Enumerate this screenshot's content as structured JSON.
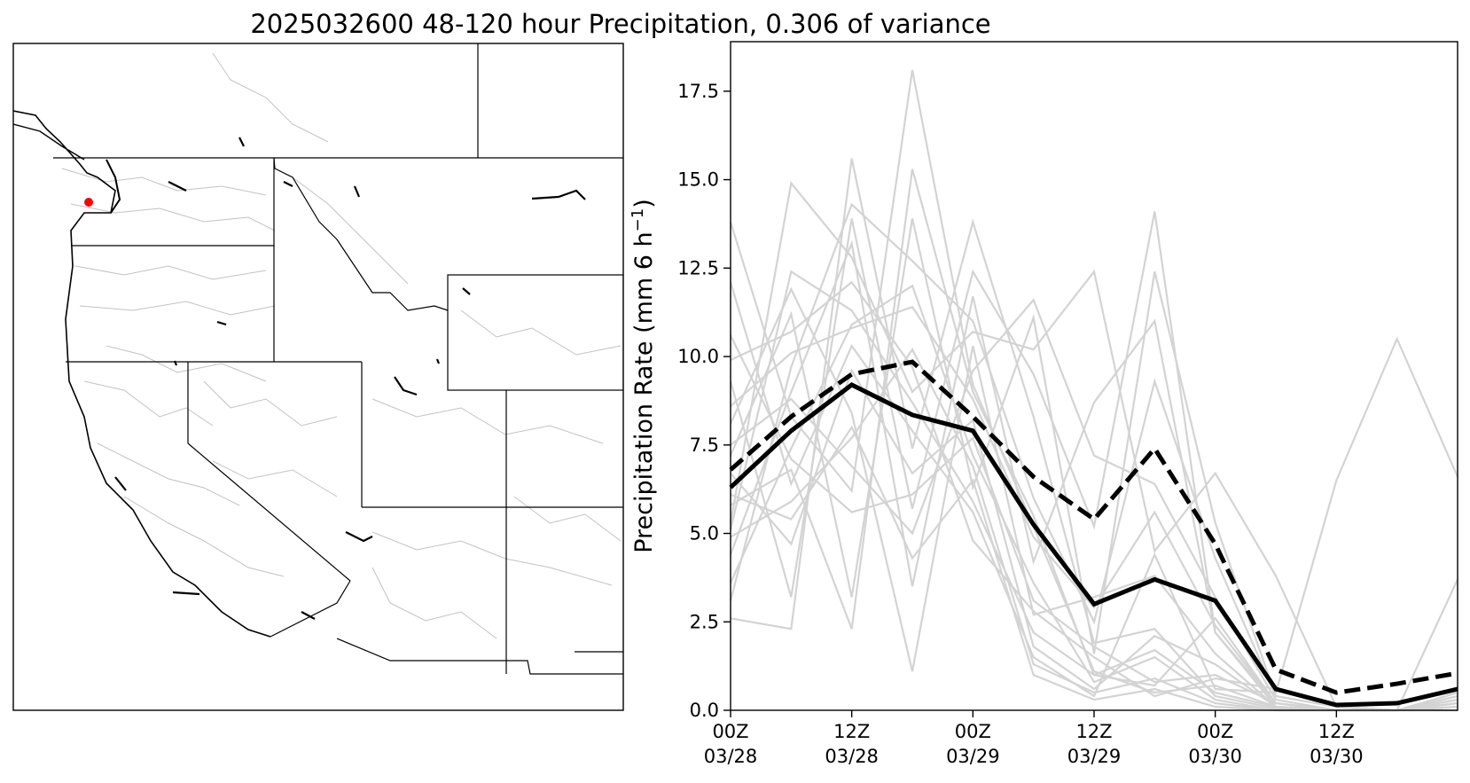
{
  "title": "2025032600 48-120 hour Precipitation, 0.306 of variance",
  "map": {
    "region": "western-us",
    "marker_color": "#ff0000",
    "state_line_color": "#000000",
    "basin_line_color": "#b0b0b0"
  },
  "chart_data": {
    "type": "line",
    "ylabel": "Precipitation Rate (mm 6 h",
    "ylabel_sup": "−1",
    "ylabel_close": ")",
    "ylim": [
      0,
      18.9
    ],
    "xlim": [
      0,
      72
    ],
    "yticks": [
      0.0,
      2.5,
      5.0,
      7.5,
      10.0,
      12.5,
      15.0,
      17.5
    ],
    "ytick_labels": [
      "0.0",
      "2.5",
      "5.0",
      "7.5",
      "10.0",
      "12.5",
      "15.0",
      "17.5"
    ],
    "xticks": [
      0,
      12,
      24,
      36,
      48,
      60
    ],
    "xtick_labels": [
      [
        "00Z",
        "03/28"
      ],
      [
        "12Z",
        "03/28"
      ],
      [
        "00Z",
        "03/29"
      ],
      [
        "12Z",
        "03/29"
      ],
      [
        "00Z",
        "03/30"
      ],
      [
        "12Z",
        "03/30"
      ]
    ],
    "x": [
      0,
      6,
      12,
      18,
      24,
      30,
      36,
      42,
      48,
      54,
      60,
      66,
      72
    ],
    "grid": false,
    "legend": "none",
    "series": [
      {
        "role": "mean",
        "color": "#000000",
        "style": "solid",
        "values": [
          6.3,
          7.9,
          9.2,
          8.35,
          7.9,
          5.25,
          3.0,
          3.7,
          3.1,
          0.6,
          0.15,
          0.2,
          0.6
        ]
      },
      {
        "role": "reference",
        "color": "#000000",
        "style": "dashed",
        "values": [
          6.8,
          8.3,
          9.5,
          9.85,
          8.3,
          6.6,
          5.4,
          7.4,
          4.7,
          1.15,
          0.5,
          0.75,
          1.05
        ]
      },
      {
        "role": "member",
        "color": "#d3d3d3",
        "values": [
          13.8,
          8.3,
          6.2,
          18.1,
          9.2,
          5.2,
          1.1,
          0.5,
          0.7,
          0.1,
          0.0,
          0.0,
          0.2
        ]
      },
      {
        "role": "member",
        "color": "#d3d3d3",
        "values": [
          2.6,
          2.3,
          15.6,
          7.4,
          13.8,
          8.3,
          1.9,
          2.3,
          0.4,
          0.05,
          0.0,
          0.0,
          0.3
        ]
      },
      {
        "role": "member",
        "color": "#d3d3d3",
        "values": [
          5.3,
          14.9,
          12.8,
          9.0,
          10.7,
          10.2,
          12.4,
          4.5,
          6.7,
          3.8,
          0.1,
          0.0,
          0.4
        ]
      },
      {
        "role": "member",
        "color": "#d3d3d3",
        "values": [
          9.3,
          3.2,
          13.9,
          5.7,
          12.4,
          9.5,
          5.2,
          14.1,
          2.2,
          0.2,
          0.0,
          0.0,
          0.1
        ]
      },
      {
        "role": "member",
        "color": "#d3d3d3",
        "values": [
          7.2,
          11.2,
          3.2,
          13.9,
          6.3,
          11.1,
          1.6,
          12.4,
          5.3,
          0.4,
          0.1,
          0.0,
          0.2
        ]
      },
      {
        "role": "member",
        "color": "#d3d3d3",
        "values": [
          4.4,
          9.0,
          13.2,
          3.5,
          11.7,
          4.2,
          8.7,
          11.0,
          2.2,
          0.1,
          0.0,
          0.0,
          0.5
        ]
      },
      {
        "role": "member",
        "color": "#d3d3d3",
        "values": [
          12.1,
          6.4,
          10.3,
          7.9,
          5.6,
          1.5,
          0.4,
          4.4,
          0.6,
          0.5,
          6.5,
          10.5,
          6.6
        ]
      },
      {
        "role": "member",
        "color": "#d3d3d3",
        "values": [
          5.8,
          6.8,
          2.3,
          15.3,
          9.0,
          5.5,
          1.0,
          0.7,
          2.6,
          0.2,
          0.0,
          0.0,
          0.3
        ]
      },
      {
        "role": "member",
        "color": "#d3d3d3",
        "values": [
          8.1,
          11.9,
          8.4,
          1.1,
          10.3,
          2.7,
          3.2,
          3.8,
          1.6,
          0.1,
          0.0,
          0.0,
          0.2
        ]
      },
      {
        "role": "member",
        "color": "#d3d3d3",
        "values": [
          3.6,
          7.4,
          10.9,
          12.0,
          7.2,
          3.6,
          0.8,
          1.5,
          0.3,
          0.0,
          0.0,
          0.0,
          0.1
        ]
      },
      {
        "role": "member",
        "color": "#d3d3d3",
        "values": [
          6.7,
          4.7,
          9.6,
          6.7,
          8.2,
          1.8,
          0.6,
          2.1,
          1.3,
          0.1,
          0.0,
          0.0,
          0.4
        ]
      },
      {
        "role": "member",
        "color": "#d3d3d3",
        "values": [
          9.9,
          10.7,
          12.1,
          9.7,
          4.8,
          2.8,
          1.5,
          0.4,
          0.9,
          0.6,
          0.1,
          0.0,
          0.2
        ]
      },
      {
        "role": "member",
        "color": "#d3d3d3",
        "values": [
          4.9,
          5.9,
          7.7,
          10.2,
          6.9,
          1.3,
          0.5,
          0.9,
          0.2,
          0.0,
          0.0,
          0.0,
          0.0
        ]
      },
      {
        "role": "member",
        "color": "#d3d3d3",
        "values": [
          7.5,
          8.8,
          6.9,
          5.0,
          9.6,
          11.6,
          7.2,
          6.4,
          3.2,
          0.3,
          0.0,
          0.0,
          3.7
        ]
      },
      {
        "role": "member",
        "color": "#d3d3d3",
        "values": [
          5.1,
          12.4,
          11.3,
          8.7,
          5.9,
          2.2,
          1.0,
          1.7,
          0.5,
          0.1,
          0.0,
          0.0,
          0.1
        ]
      },
      {
        "role": "member",
        "color": "#d3d3d3",
        "values": [
          10.6,
          7.1,
          5.6,
          6.1,
          7.7,
          3.1,
          1.8,
          0.8,
          1.0,
          0.2,
          0.0,
          0.0,
          0.3
        ]
      },
      {
        "role": "member",
        "color": "#d3d3d3",
        "values": [
          3.1,
          9.7,
          14.3,
          12.7,
          11.0,
          6.0,
          2.5,
          9.3,
          4.3,
          0.4,
          0.1,
          0.0,
          0.5
        ]
      },
      {
        "role": "member",
        "color": "#d3d3d3",
        "values": [
          6.1,
          5.4,
          8.0,
          4.3,
          6.5,
          1.0,
          0.3,
          0.6,
          0.1,
          0.0,
          0.0,
          0.0,
          0.0
        ]
      },
      {
        "role": "member",
        "color": "#d3d3d3",
        "values": [
          8.6,
          10.1,
          10.8,
          11.4,
          8.8,
          4.9,
          2.9,
          5.6,
          2.4,
          0.2,
          0.0,
          0.0,
          0.2
        ]
      }
    ]
  }
}
